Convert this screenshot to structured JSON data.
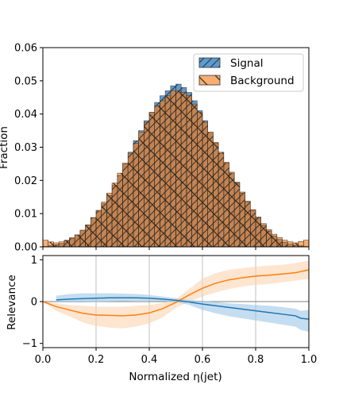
{
  "colors": {
    "signal": "#5b9bd0",
    "background": "#f6ae72",
    "overlap": "#c48452",
    "signal_line": "#1f77b4",
    "signal_band": "#9fc7e6",
    "background_line": "#ff7f0e",
    "background_band": "#fcd4b0"
  },
  "chart_data": [
    {
      "type": "bar",
      "subtype": "histogram",
      "ylabel": "Fraction",
      "xlim": [
        0,
        1
      ],
      "ylim": [
        0,
        0.06
      ],
      "yticks": [
        "0.00",
        "0.01",
        "0.02",
        "0.03",
        "0.04",
        "0.05",
        "0.06"
      ],
      "yticks_values": [
        0,
        0.01,
        0.02,
        0.03,
        0.04,
        0.05,
        0.06
      ],
      "bins": 50,
      "legend": {
        "placement": "top-right",
        "entries": [
          "Signal",
          "Background"
        ]
      },
      "series": [
        {
          "name": "Signal",
          "hatch": "diagonal-forward",
          "values": [
            0.0001,
            0.0003,
            0.0006,
            0.001,
            0.0018,
            0.0025,
            0.0036,
            0.005,
            0.0066,
            0.0088,
            0.0108,
            0.013,
            0.0155,
            0.0185,
            0.0215,
            0.025,
            0.0285,
            0.032,
            0.035,
            0.038,
            0.0405,
            0.0435,
            0.0455,
            0.047,
            0.0485,
            0.049,
            0.048,
            0.0465,
            0.044,
            0.041,
            0.038,
            0.0345,
            0.0312,
            0.0282,
            0.0252,
            0.0222,
            0.0192,
            0.0162,
            0.0135,
            0.011,
            0.0088,
            0.0066,
            0.0048,
            0.0033,
            0.0022,
            0.0014,
            0.0008,
            0.0005,
            0.0003,
            0.0001
          ]
        },
        {
          "name": "Background",
          "hatch": "diagonal-back",
          "values": [
            0.002,
            0.0015,
            0.0012,
            0.0015,
            0.002,
            0.0028,
            0.0036,
            0.005,
            0.0066,
            0.0088,
            0.011,
            0.0135,
            0.0162,
            0.0192,
            0.0222,
            0.0252,
            0.0282,
            0.0312,
            0.0345,
            0.0375,
            0.0405,
            0.0425,
            0.044,
            0.0455,
            0.047,
            0.047,
            0.0465,
            0.0455,
            0.043,
            0.0405,
            0.0375,
            0.0345,
            0.0315,
            0.0285,
            0.0255,
            0.0225,
            0.0195,
            0.0165,
            0.0138,
            0.0112,
            0.009,
            0.007,
            0.0052,
            0.0038,
            0.0028,
            0.002,
            0.0015,
            0.0012,
            0.0016,
            0.002
          ]
        }
      ]
    },
    {
      "type": "line",
      "xlabel": "Normalized η(jet)",
      "ylabel": "Relevance",
      "xlim": [
        0,
        1
      ],
      "ylim": [
        -1.1,
        1.1
      ],
      "xticks": [
        "0.0",
        "0.2",
        "0.4",
        "0.6",
        "0.8",
        "1.0"
      ],
      "xticks_values": [
        0,
        0.2,
        0.4,
        0.6,
        0.8,
        1.0
      ],
      "yticks": [
        "−1",
        "0",
        "1"
      ],
      "yticks_values": [
        -1,
        0,
        1
      ],
      "grid": "vertical",
      "hline": 0,
      "series": [
        {
          "name": "Signal",
          "x": [
            0.05,
            0.1,
            0.15,
            0.2,
            0.25,
            0.3,
            0.35,
            0.4,
            0.45,
            0.5,
            0.55,
            0.6,
            0.65,
            0.7,
            0.75,
            0.8,
            0.85,
            0.9,
            0.95,
            0.97,
            1.0
          ],
          "y": [
            0.04,
            0.06,
            0.07,
            0.08,
            0.09,
            0.09,
            0.09,
            0.08,
            0.06,
            0.03,
            -0.01,
            -0.06,
            -0.1,
            -0.14,
            -0.18,
            -0.22,
            -0.26,
            -0.3,
            -0.34,
            -0.4,
            -0.42
          ],
          "lower": [
            -0.02,
            -0.02,
            -0.02,
            -0.01,
            0.0,
            0.01,
            0.02,
            0.02,
            0.01,
            -0.01,
            -0.08,
            -0.2,
            -0.28,
            -0.35,
            -0.4,
            -0.45,
            -0.5,
            -0.55,
            -0.6,
            -0.68,
            -0.72
          ],
          "upper": [
            0.14,
            0.18,
            0.2,
            0.2,
            0.2,
            0.19,
            0.18,
            0.16,
            0.12,
            0.08,
            0.04,
            0.02,
            -0.01,
            -0.04,
            -0.06,
            -0.08,
            -0.1,
            -0.13,
            -0.17,
            -0.22,
            -0.2
          ]
        },
        {
          "name": "Background",
          "x": [
            0.0,
            0.05,
            0.1,
            0.15,
            0.2,
            0.25,
            0.3,
            0.35,
            0.4,
            0.45,
            0.5,
            0.55,
            0.6,
            0.65,
            0.7,
            0.75,
            0.8,
            0.85,
            0.9,
            0.95,
            1.0
          ],
          "y": [
            0.0,
            -0.12,
            -0.2,
            -0.28,
            -0.32,
            -0.33,
            -0.34,
            -0.32,
            -0.27,
            -0.17,
            -0.02,
            0.16,
            0.32,
            0.44,
            0.52,
            0.57,
            0.61,
            0.63,
            0.66,
            0.69,
            0.76
          ],
          "lower": [
            0.0,
            -0.22,
            -0.35,
            -0.5,
            -0.58,
            -0.62,
            -0.64,
            -0.6,
            -0.52,
            -0.38,
            -0.15,
            0.0,
            0.12,
            0.22,
            0.3,
            0.36,
            0.4,
            0.42,
            0.46,
            0.5,
            0.54
          ],
          "upper": [
            0.0,
            -0.04,
            -0.08,
            -0.1,
            -0.12,
            -0.12,
            -0.12,
            -0.1,
            -0.08,
            -0.03,
            0.06,
            0.3,
            0.55,
            0.68,
            0.76,
            0.8,
            0.84,
            0.86,
            0.88,
            0.92,
            0.98
          ]
        }
      ]
    }
  ]
}
